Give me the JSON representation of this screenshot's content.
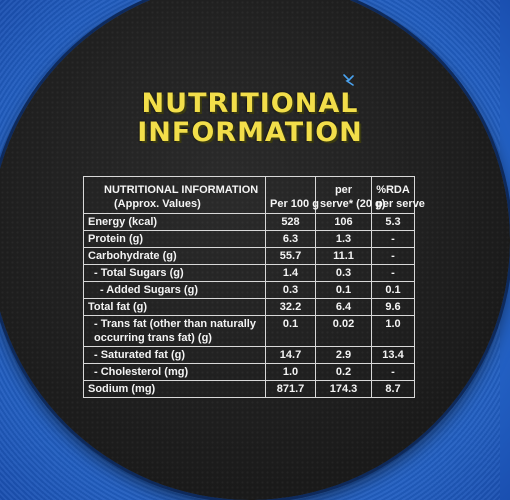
{
  "title_line1": "NUTRITIONAL",
  "title_line2": "INFORMATION",
  "table": {
    "header": {
      "col0_line1": "NUTRITIONAL INFORMATION",
      "col0_line2": "(Approx. Values)",
      "col1": "Per 100 g",
      "col2_line1": "per",
      "col2_line2": "serve* (20 g)",
      "col3_line1": "%RDA",
      "col3_line2": "per serve"
    },
    "rows": [
      {
        "label": "Energy (kcal)",
        "per100": "528",
        "perServe": "106",
        "rda": "5.3"
      },
      {
        "label": "Protein (g)",
        "per100": "6.3",
        "perServe": "1.3",
        "rda": "-"
      },
      {
        "label": "Carbohydrate (g)",
        "per100": "55.7",
        "perServe": "11.1",
        "rda": "-"
      },
      {
        "label": "- Total Sugars (g)",
        "per100": "1.4",
        "perServe": "0.3",
        "rda": "-"
      },
      {
        "label": "- Added Sugars (g)",
        "per100": "0.3",
        "perServe": "0.1",
        "rda": "0.1"
      },
      {
        "label": "Total fat (g)",
        "per100": "32.2",
        "perServe": "6.4",
        "rda": "9.6"
      },
      {
        "label": "- Trans fat (other than naturally occurring trans fat) (g)",
        "per100": "0.1",
        "perServe": "0.02",
        "rda": "1.0"
      },
      {
        "label": "- Saturated fat (g)",
        "per100": "14.7",
        "perServe": "2.9",
        "rda": "13.4"
      },
      {
        "label": "- Cholesterol (mg)",
        "per100": "1.0",
        "perServe": "0.2",
        "rda": "-"
      },
      {
        "label": "Sodium (mg)",
        "per100": "871.7",
        "perServe": "174.3",
        "rda": "8.7"
      }
    ]
  },
  "colors": {
    "title": "#f2de4a",
    "disc": "#1e1e1e",
    "background": "#2a6fd4"
  }
}
